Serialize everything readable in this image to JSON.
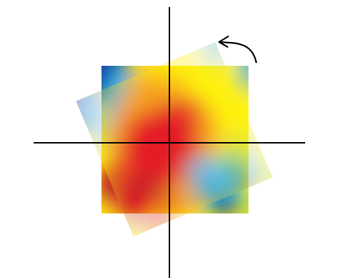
{
  "figure": {
    "description_kind": "rotated-image-over-axes",
    "colors": {
      "background": "#ffffff",
      "axes": "#000000",
      "arrow": "#000000",
      "heat_dark_blue": "#1a2e9e",
      "heat_cyan": "#19b8ef",
      "heat_yellow": "#fff20a",
      "heat_orange": "#f7a21b",
      "heat_red": "#e41e26",
      "heat_dark_red": "#b51d2b",
      "heat_green": "#7cc27a"
    },
    "icons": {
      "rotation_arrow": "curved-arrow-icon"
    },
    "rotation_direction": "counter-clockwise",
    "overlay_opacity": 0.35
  }
}
